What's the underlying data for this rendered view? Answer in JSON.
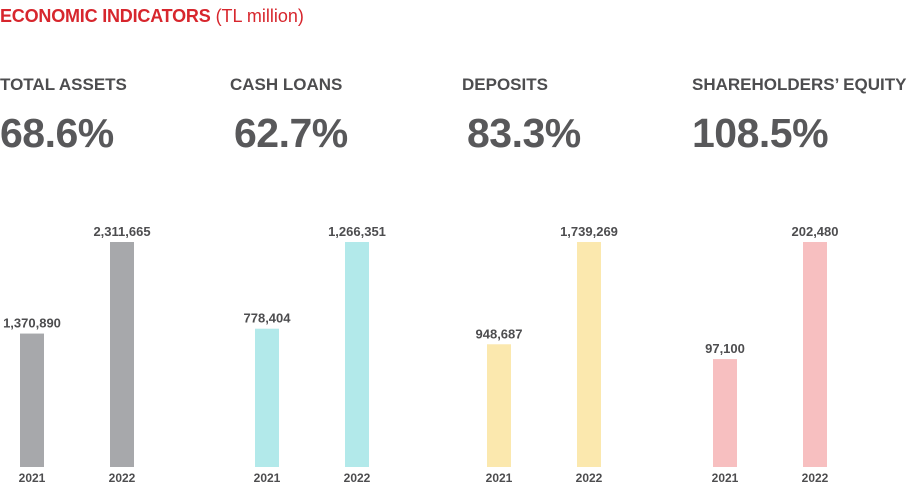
{
  "header": {
    "title": "ECONOMIC INDICATORS",
    "unit": "(TL million)"
  },
  "chart_data": [
    {
      "type": "bar",
      "title": "TOTAL ASSETS",
      "change": "68.6%",
      "categories": [
        "2021",
        "2022"
      ],
      "values": [
        1370890,
        2311665
      ],
      "value_labels": [
        "1,370,890",
        "2,311,665"
      ],
      "color": "#a7a8ab"
    },
    {
      "type": "bar",
      "title": "CASH LOANS",
      "change": "62.7%",
      "categories": [
        "2021",
        "2022"
      ],
      "values": [
        778404,
        1266351
      ],
      "value_labels": [
        "778,404",
        "1,266,351"
      ],
      "color": "#b2e9ea"
    },
    {
      "type": "bar",
      "title": "DEPOSITS",
      "change": "83.3%",
      "categories": [
        "2021",
        "2022"
      ],
      "values": [
        948687,
        1739269
      ],
      "value_labels": [
        "948,687",
        "1,739,269"
      ],
      "color": "#fbe8ae"
    },
    {
      "type": "bar",
      "title": "SHAREHOLDERS’ EQUITY",
      "change": "108.5%",
      "categories": [
        "2021",
        "2022"
      ],
      "values": [
        97100,
        202480
      ],
      "value_labels": [
        "97,100",
        "202,480"
      ],
      "color": "#f7bfc0"
    }
  ]
}
